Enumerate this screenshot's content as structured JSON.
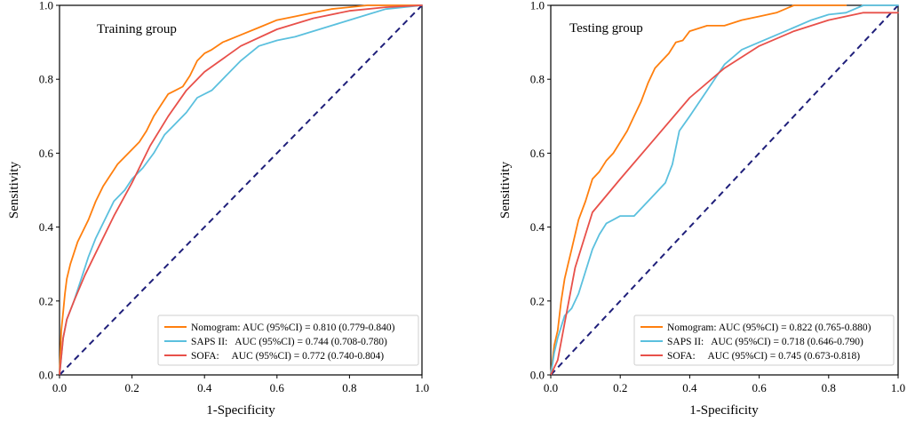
{
  "chart_data": [
    {
      "type": "line",
      "title": "Training group",
      "xlabel": "1-Specificity",
      "ylabel": "Sensitivity",
      "xlim": [
        0,
        1
      ],
      "ylim": [
        0,
        1
      ],
      "xticks": [
        "0.0",
        "0.2",
        "0.4",
        "0.6",
        "0.8",
        "1.0"
      ],
      "yticks": [
        "0.0",
        "0.2",
        "0.4",
        "0.6",
        "0.8",
        "1.0"
      ],
      "legend_position": "bottom-right",
      "series": [
        {
          "name": "Nomogram",
          "color": "#ff7f0e",
          "legend_label": "Nomogram: AUC (95%CI) = 0.810 (0.779-0.840)",
          "x": [
            0,
            0.005,
            0.01,
            0.015,
            0.02,
            0.03,
            0.04,
            0.05,
            0.06,
            0.08,
            0.1,
            0.12,
            0.14,
            0.16,
            0.18,
            0.2,
            0.22,
            0.24,
            0.26,
            0.28,
            0.3,
            0.32,
            0.34,
            0.36,
            0.38,
            0.4,
            0.42,
            0.45,
            0.5,
            0.55,
            0.6,
            0.65,
            0.7,
            0.75,
            0.8,
            0.85,
            0.9,
            0.95,
            1.0
          ],
          "y": [
            0,
            0.12,
            0.17,
            0.22,
            0.26,
            0.3,
            0.33,
            0.36,
            0.38,
            0.42,
            0.47,
            0.51,
            0.54,
            0.57,
            0.59,
            0.61,
            0.63,
            0.66,
            0.7,
            0.73,
            0.76,
            0.77,
            0.78,
            0.81,
            0.85,
            0.87,
            0.88,
            0.9,
            0.92,
            0.94,
            0.96,
            0.97,
            0.98,
            0.99,
            0.995,
            1.0,
            1.0,
            1.0,
            1.0
          ]
        },
        {
          "name": "SAPS II",
          "color": "#5bc0de",
          "legend_label": "SAPS II:   AUC (95%CI) = 0.744 (0.708-0.780)",
          "x": [
            0,
            0.01,
            0.02,
            0.04,
            0.06,
            0.08,
            0.1,
            0.12,
            0.15,
            0.18,
            0.2,
            0.23,
            0.26,
            0.29,
            0.32,
            0.35,
            0.38,
            0.42,
            0.45,
            0.5,
            0.55,
            0.6,
            0.65,
            0.7,
            0.75,
            0.8,
            0.85,
            0.9,
            0.95,
            1.0
          ],
          "y": [
            0,
            0.1,
            0.15,
            0.2,
            0.26,
            0.32,
            0.37,
            0.41,
            0.47,
            0.5,
            0.53,
            0.56,
            0.6,
            0.65,
            0.68,
            0.71,
            0.75,
            0.77,
            0.8,
            0.85,
            0.89,
            0.905,
            0.915,
            0.93,
            0.945,
            0.96,
            0.975,
            0.99,
            0.995,
            1.0
          ]
        },
        {
          "name": "SOFA",
          "color": "#e8504a",
          "legend_label": "SOFA:     AUC (95%CI) = 0.772 (0.740-0.804)",
          "x": [
            0,
            0.01,
            0.02,
            0.04,
            0.07,
            0.1,
            0.15,
            0.2,
            0.25,
            0.3,
            0.35,
            0.4,
            0.5,
            0.6,
            0.7,
            0.8,
            0.9,
            1.0
          ],
          "y": [
            0,
            0.1,
            0.15,
            0.2,
            0.27,
            0.33,
            0.43,
            0.52,
            0.62,
            0.7,
            0.77,
            0.82,
            0.89,
            0.935,
            0.965,
            0.985,
            0.995,
            1.0
          ]
        }
      ],
      "reference_line": {
        "color": "#1f1f7a",
        "x": [
          0,
          1
        ],
        "y": [
          0,
          1
        ]
      }
    },
    {
      "type": "line",
      "title": "Testing group",
      "xlabel": "1-Specificity",
      "ylabel": "Sensitivity",
      "xlim": [
        0,
        1
      ],
      "ylim": [
        0,
        1
      ],
      "xticks": [
        "0.0",
        "0.2",
        "0.4",
        "0.6",
        "0.8",
        "1.0"
      ],
      "yticks": [
        "0.0",
        "0.2",
        "0.4",
        "0.6",
        "0.8",
        "1.0"
      ],
      "legend_position": "bottom-right",
      "series": [
        {
          "name": "Nomogram",
          "color": "#ff7f0e",
          "legend_label": "Nomogram: AUC (95%CI) = 0.822 (0.765-0.880)",
          "x": [
            0,
            0.01,
            0.02,
            0.03,
            0.04,
            0.05,
            0.06,
            0.07,
            0.08,
            0.1,
            0.12,
            0.14,
            0.16,
            0.18,
            0.2,
            0.22,
            0.24,
            0.26,
            0.28,
            0.3,
            0.32,
            0.34,
            0.36,
            0.38,
            0.4,
            0.45,
            0.5,
            0.55,
            0.6,
            0.65,
            0.7,
            0.75,
            0.8,
            0.85
          ],
          "y": [
            0,
            0.08,
            0.12,
            0.2,
            0.26,
            0.3,
            0.34,
            0.38,
            0.42,
            0.47,
            0.53,
            0.55,
            0.58,
            0.6,
            0.63,
            0.66,
            0.7,
            0.74,
            0.79,
            0.83,
            0.85,
            0.87,
            0.9,
            0.905,
            0.93,
            0.945,
            0.945,
            0.96,
            0.97,
            0.98,
            1.0,
            1.0,
            1.0,
            1.0
          ]
        },
        {
          "name": "SAPS II",
          "color": "#5bc0de",
          "legend_label": "SAPS II:   AUC (95%CI) = 0.718 (0.646-0.790)",
          "x": [
            0,
            0.01,
            0.02,
            0.04,
            0.06,
            0.08,
            0.1,
            0.12,
            0.14,
            0.16,
            0.18,
            0.2,
            0.24,
            0.28,
            0.3,
            0.33,
            0.35,
            0.37,
            0.4,
            0.45,
            0.5,
            0.55,
            0.6,
            0.65,
            0.7,
            0.75,
            0.8,
            0.85,
            0.9,
            1.0
          ],
          "y": [
            0,
            0.06,
            0.1,
            0.16,
            0.18,
            0.22,
            0.28,
            0.34,
            0.38,
            0.41,
            0.42,
            0.43,
            0.43,
            0.47,
            0.49,
            0.52,
            0.57,
            0.66,
            0.7,
            0.77,
            0.84,
            0.88,
            0.9,
            0.92,
            0.94,
            0.96,
            0.975,
            0.98,
            1.0,
            1.0
          ]
        },
        {
          "name": "SOFA",
          "color": "#e8504a",
          "legend_label": "SOFA:     AUC (95%CI) = 0.745 (0.673-0.818)",
          "x": [
            0,
            0.02,
            0.04,
            0.07,
            0.1,
            0.12,
            0.2,
            0.3,
            0.4,
            0.5,
            0.6,
            0.7,
            0.8,
            0.9,
            1.0
          ],
          "y": [
            0,
            0.04,
            0.14,
            0.29,
            0.38,
            0.44,
            0.53,
            0.64,
            0.75,
            0.83,
            0.89,
            0.93,
            0.96,
            0.98,
            0.98
          ]
        }
      ],
      "reference_line": {
        "color": "#1f1f7a",
        "x": [
          0,
          1
        ],
        "y": [
          0,
          1
        ]
      }
    }
  ]
}
